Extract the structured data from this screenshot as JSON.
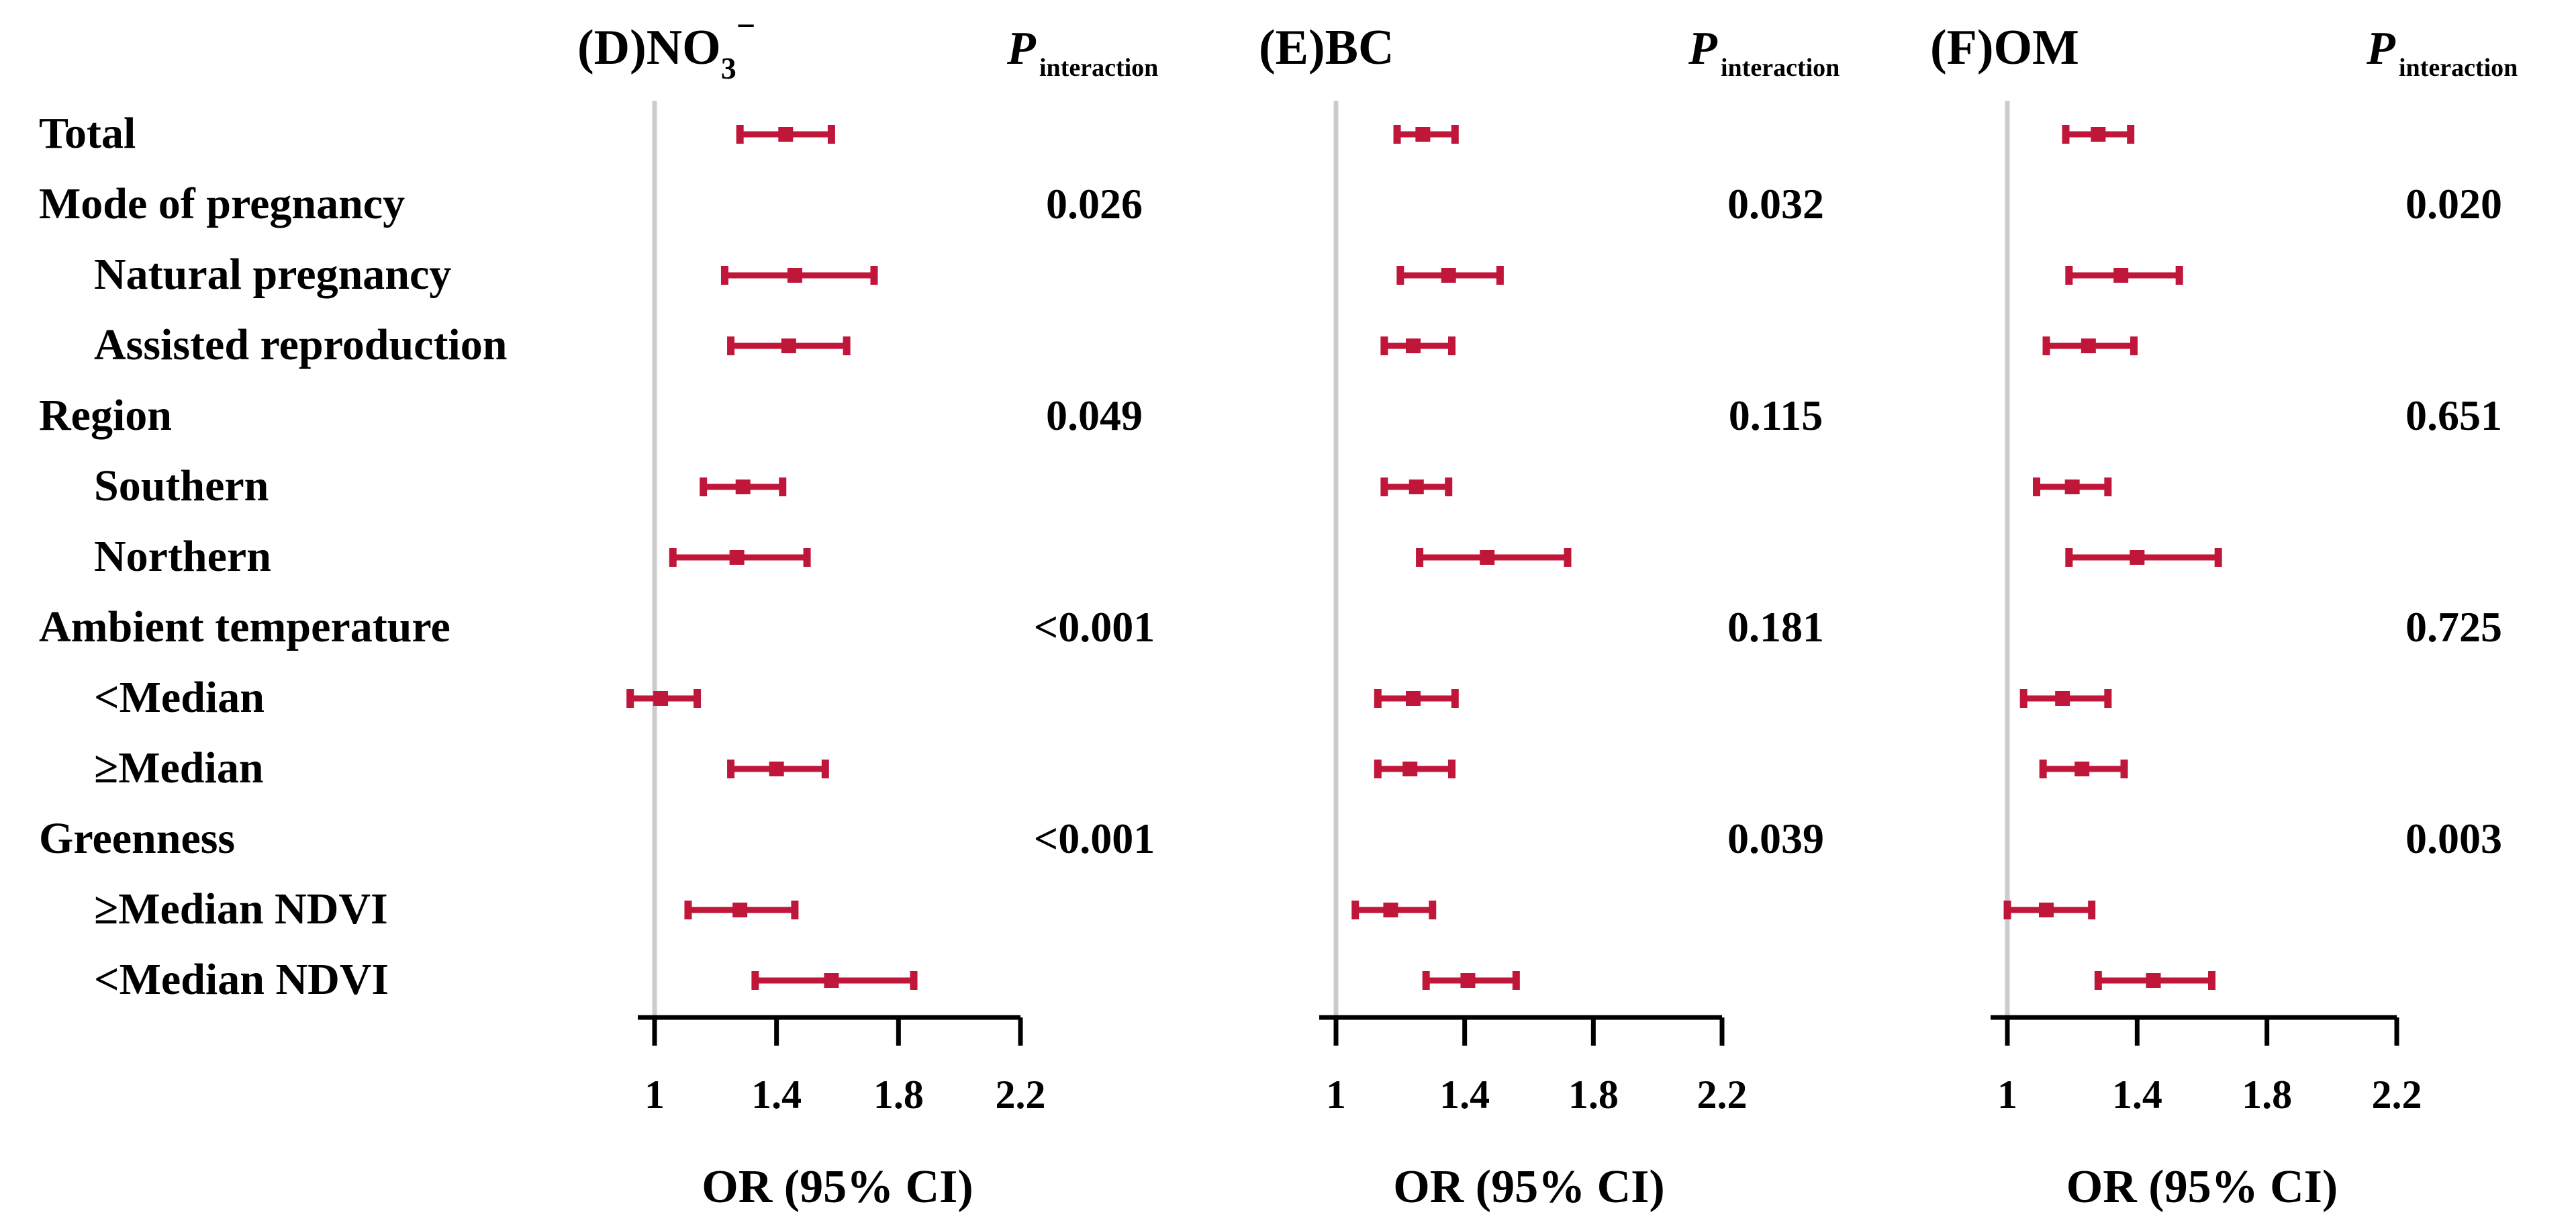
{
  "rows": [
    {
      "label": "Total",
      "indent": false
    },
    {
      "label": "Mode of pregnancy",
      "indent": false
    },
    {
      "label": "Natural pregnancy",
      "indent": true
    },
    {
      "label": "Assisted reproduction",
      "indent": true
    },
    {
      "label": "Region",
      "indent": false
    },
    {
      "label": "Southern",
      "indent": true
    },
    {
      "label": "Northern",
      "indent": true
    },
    {
      "label": "Ambient temperature",
      "indent": false
    },
    {
      "label": "<Median",
      "indent": true
    },
    {
      "label": "≥Median",
      "indent": true
    },
    {
      "label": "Greenness",
      "indent": false
    },
    {
      "label": "≥Median NDVI",
      "indent": true
    },
    {
      "label": "<Median NDVI",
      "indent": true
    }
  ],
  "chart_data": [
    {
      "type": "forest",
      "panel": "(D)",
      "title_main": "NO",
      "title_sub": "3",
      "title_sup": "−",
      "p_label": "P",
      "p_sub": "interaction",
      "xlabel": "OR (95% CI)",
      "xticks": [
        1,
        1.4,
        1.8,
        2.2
      ],
      "tick_labels": [
        "1",
        "1.4",
        "1.8",
        "2.2"
      ],
      "xlim": [
        1,
        2.2
      ],
      "ref_line": 1,
      "estimates": [
        {
          "or": 1.43,
          "lo": 1.28,
          "hi": 1.58
        },
        null,
        {
          "or": 1.46,
          "lo": 1.23,
          "hi": 1.72
        },
        {
          "or": 1.44,
          "lo": 1.25,
          "hi": 1.63
        },
        null,
        {
          "or": 1.29,
          "lo": 1.16,
          "hi": 1.42
        },
        {
          "or": 1.27,
          "lo": 1.06,
          "hi": 1.5
        },
        null,
        {
          "or": 1.02,
          "lo": 0.92,
          "hi": 1.14
        },
        {
          "or": 1.4,
          "lo": 1.25,
          "hi": 1.56
        },
        null,
        {
          "or": 1.28,
          "lo": 1.11,
          "hi": 1.46
        },
        {
          "or": 1.58,
          "lo": 1.33,
          "hi": 1.85
        }
      ],
      "p_values": [
        null,
        "0.026",
        null,
        null,
        "0.049",
        null,
        null,
        "<0.001",
        null,
        null,
        "<0.001",
        null,
        null
      ]
    },
    {
      "type": "forest",
      "panel": "(E)",
      "title_main": "BC",
      "title_sub": "",
      "title_sup": "",
      "p_label": "P",
      "p_sub": "interaction",
      "xlabel": "OR (95% CI)",
      "xticks": [
        1,
        1.4,
        1.8,
        2.2
      ],
      "tick_labels": [
        "1",
        "1.4",
        "1.8",
        "2.2"
      ],
      "xlim": [
        1,
        2.2
      ],
      "ref_line": 1,
      "estimates": [
        {
          "or": 1.27,
          "lo": 1.19,
          "hi": 1.37
        },
        null,
        {
          "or": 1.35,
          "lo": 1.2,
          "hi": 1.51
        },
        {
          "or": 1.24,
          "lo": 1.15,
          "hi": 1.36
        },
        null,
        {
          "or": 1.25,
          "lo": 1.15,
          "hi": 1.35
        },
        {
          "or": 1.47,
          "lo": 1.26,
          "hi": 1.72
        },
        null,
        {
          "or": 1.24,
          "lo": 1.13,
          "hi": 1.37
        },
        {
          "or": 1.23,
          "lo": 1.13,
          "hi": 1.36
        },
        null,
        {
          "or": 1.17,
          "lo": 1.06,
          "hi": 1.3
        },
        {
          "or": 1.41,
          "lo": 1.28,
          "hi": 1.56
        }
      ],
      "p_values": [
        null,
        "0.032",
        null,
        null,
        "0.115",
        null,
        null,
        "0.181",
        null,
        null,
        "0.039",
        null,
        null
      ]
    },
    {
      "type": "forest",
      "panel": "(F)",
      "title_main": "OM",
      "title_sub": "",
      "title_sup": "",
      "p_label": "P",
      "p_sub": "interaction",
      "xlabel": "OR (95% CI)",
      "xticks": [
        1,
        1.4,
        1.8,
        2.2
      ],
      "tick_labels": [
        "1",
        "1.4",
        "1.8",
        "2.2"
      ],
      "xlim": [
        1,
        2.2
      ],
      "ref_line": 1,
      "estimates": [
        {
          "or": 1.28,
          "lo": 1.18,
          "hi": 1.38
        },
        null,
        {
          "or": 1.35,
          "lo": 1.19,
          "hi": 1.53
        },
        {
          "or": 1.25,
          "lo": 1.12,
          "hi": 1.39
        },
        null,
        {
          "or": 1.2,
          "lo": 1.09,
          "hi": 1.31
        },
        {
          "or": 1.4,
          "lo": 1.19,
          "hi": 1.65
        },
        null,
        {
          "or": 1.17,
          "lo": 1.05,
          "hi": 1.31
        },
        {
          "or": 1.23,
          "lo": 1.11,
          "hi": 1.36
        },
        null,
        {
          "or": 1.12,
          "lo": 1.0,
          "hi": 1.26
        },
        {
          "or": 1.45,
          "lo": 1.28,
          "hi": 1.63
        }
      ],
      "p_values": [
        null,
        "0.020",
        null,
        null,
        "0.651",
        null,
        null,
        "0.725",
        null,
        null,
        "0.003",
        null,
        null
      ]
    }
  ],
  "colors": {
    "ci": "#c0163a",
    "ref_line": "#cccccc",
    "axis": "#000000",
    "text": "#000000"
  }
}
